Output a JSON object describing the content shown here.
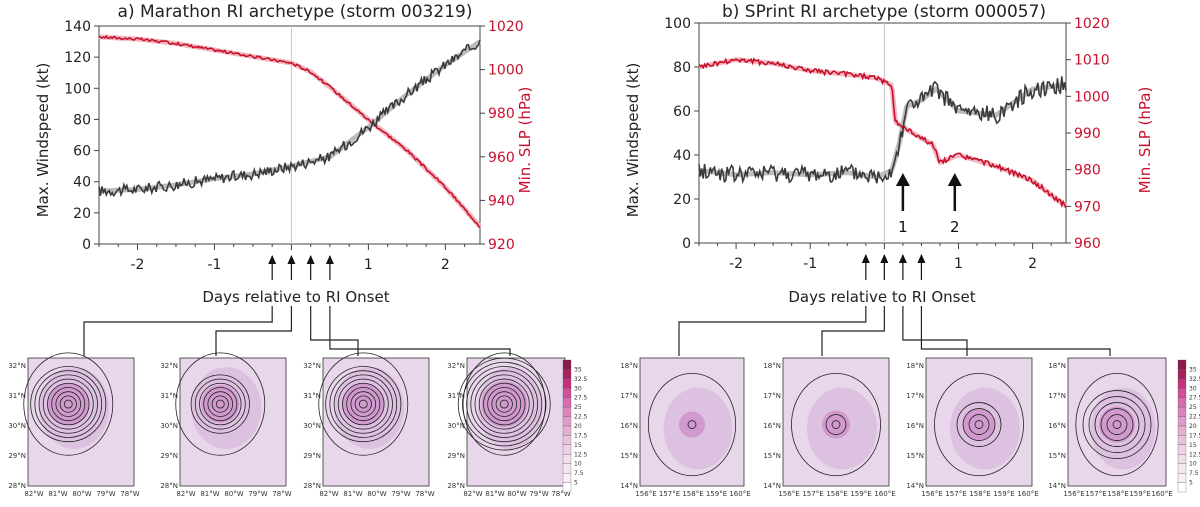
{
  "colors": {
    "wind": "#3a3a3a",
    "wind_smooth": "#bdbdbd",
    "slp": "#c8102e",
    "slp_smooth": "#f2b8bf",
    "map_fill": "#e8d6ea",
    "map_core": "#c46ab8",
    "accent_text": "#c8102e"
  },
  "chart_data": [
    {
      "panel": "a",
      "type": "line",
      "title": "a) Marathon RI archetype (storm 003219)",
      "xlabel": "Days relative to RI Onset",
      "ylabel": "Max. Windspeed (kt)",
      "y2label": "Min. SLP (hPa)",
      "xlim": [
        -2.5,
        2.45
      ],
      "ylim": [
        0,
        140
      ],
      "y2lim": [
        920,
        1020
      ],
      "xticks": [
        "-2",
        "-1",
        "0",
        "1",
        "2"
      ],
      "yticks": [
        "0",
        "20",
        "40",
        "60",
        "80",
        "100",
        "120",
        "140"
      ],
      "y2ticks": [
        "920",
        "940",
        "960",
        "980",
        "1000",
        "1020"
      ],
      "onset_day": 0,
      "series": [
        {
          "name": "Max. Windspeed",
          "axis": "left",
          "x": [
            -2.5,
            -2.0,
            -1.5,
            -1.0,
            -0.5,
            0.0,
            0.5,
            1.0,
            1.5,
            2.0,
            2.45
          ],
          "y": [
            34,
            35,
            38,
            42,
            45,
            50,
            56,
            75,
            96,
            115,
            130
          ]
        },
        {
          "name": "Min. SLP",
          "axis": "right",
          "x": [
            -2.5,
            -2.0,
            -1.5,
            -1.0,
            -0.5,
            0.0,
            0.25,
            0.5,
            1.0,
            1.5,
            2.0,
            2.45
          ],
          "y": [
            1015,
            1014,
            1012,
            1009,
            1006,
            1003,
            999,
            992,
            977,
            963,
            946,
            928
          ]
        }
      ],
      "arrows": {
        "days": [
          -0.25,
          0.0,
          0.25,
          0.5
        ],
        "bold": [],
        "labels": []
      },
      "maps": {
        "lat_labels": [
          "32°N",
          "31°N",
          "30°N",
          "29°N",
          "28°N"
        ],
        "lon_labels": [
          "82°W",
          "81°W",
          "80°W",
          "79°W",
          "78°W"
        ],
        "colorbar": [
          "35",
          "32.5",
          "30",
          "27.5",
          "25",
          "22.5",
          "20",
          "17.5",
          "15",
          "12.5",
          "10",
          "7.5",
          "5"
        ],
        "rings": [
          9,
          7,
          9,
          11
        ]
      }
    },
    {
      "panel": "b",
      "type": "line",
      "title": "b) SPrint RI archetype (storm 000057)",
      "xlabel": "Days relative to RI Onset",
      "ylabel": "Max. Windspeed (kt)",
      "y2label": "Min. SLP (hPa)",
      "xlim": [
        -2.5,
        2.45
      ],
      "ylim": [
        0,
        100
      ],
      "y2lim": [
        960,
        1020
      ],
      "xticks": [
        "-2",
        "-1",
        "0",
        "1",
        "2"
      ],
      "yticks": [
        "0",
        "20",
        "40",
        "60",
        "80",
        "100"
      ],
      "y2ticks": [
        "960",
        "970",
        "980",
        "990",
        "1000",
        "1010",
        "1020"
      ],
      "onset_day": 0,
      "series": [
        {
          "name": "Max. Windspeed",
          "axis": "left",
          "x": [
            -2.5,
            -2.0,
            -1.5,
            -1.0,
            -0.5,
            -0.1,
            0.1,
            0.2,
            0.3,
            0.5,
            0.7,
            1.0,
            1.5,
            2.0,
            2.45
          ],
          "y": [
            33,
            31,
            32,
            31,
            32,
            30,
            33,
            45,
            62,
            65,
            70,
            60,
            58,
            70,
            72
          ]
        },
        {
          "name": "Min. SLP",
          "axis": "right",
          "x": [
            -2.5,
            -2.0,
            -1.5,
            -1.0,
            -0.5,
            -0.1,
            0.1,
            0.15,
            0.3,
            0.55,
            0.65,
            0.75,
            1.0,
            1.5,
            2.0,
            2.45
          ],
          "y": [
            1008,
            1010,
            1009,
            1007,
            1006,
            1005,
            1003,
            993,
            991,
            988,
            987,
            982,
            984,
            981,
            977,
            970
          ]
        }
      ],
      "arrows": {
        "days": [
          -0.25,
          0.0,
          0.25,
          0.5
        ],
        "bold": [
          0.25,
          0.95
        ],
        "labels": [
          "1",
          "2"
        ]
      },
      "maps": {
        "lat_labels": [
          "18°N",
          "17°N",
          "16°N",
          "15°N",
          "14°N"
        ],
        "lon_labels": [
          "156°E",
          "157°E",
          "158°E",
          "159°E",
          "160°E"
        ],
        "colorbar": [
          "35",
          "32.5",
          "30",
          "27.5",
          "25",
          "22.5",
          "20",
          "17.5",
          "15",
          "12.5",
          "10",
          "7.5",
          "5"
        ],
        "rings": [
          1,
          2,
          4,
          6
        ]
      }
    }
  ]
}
